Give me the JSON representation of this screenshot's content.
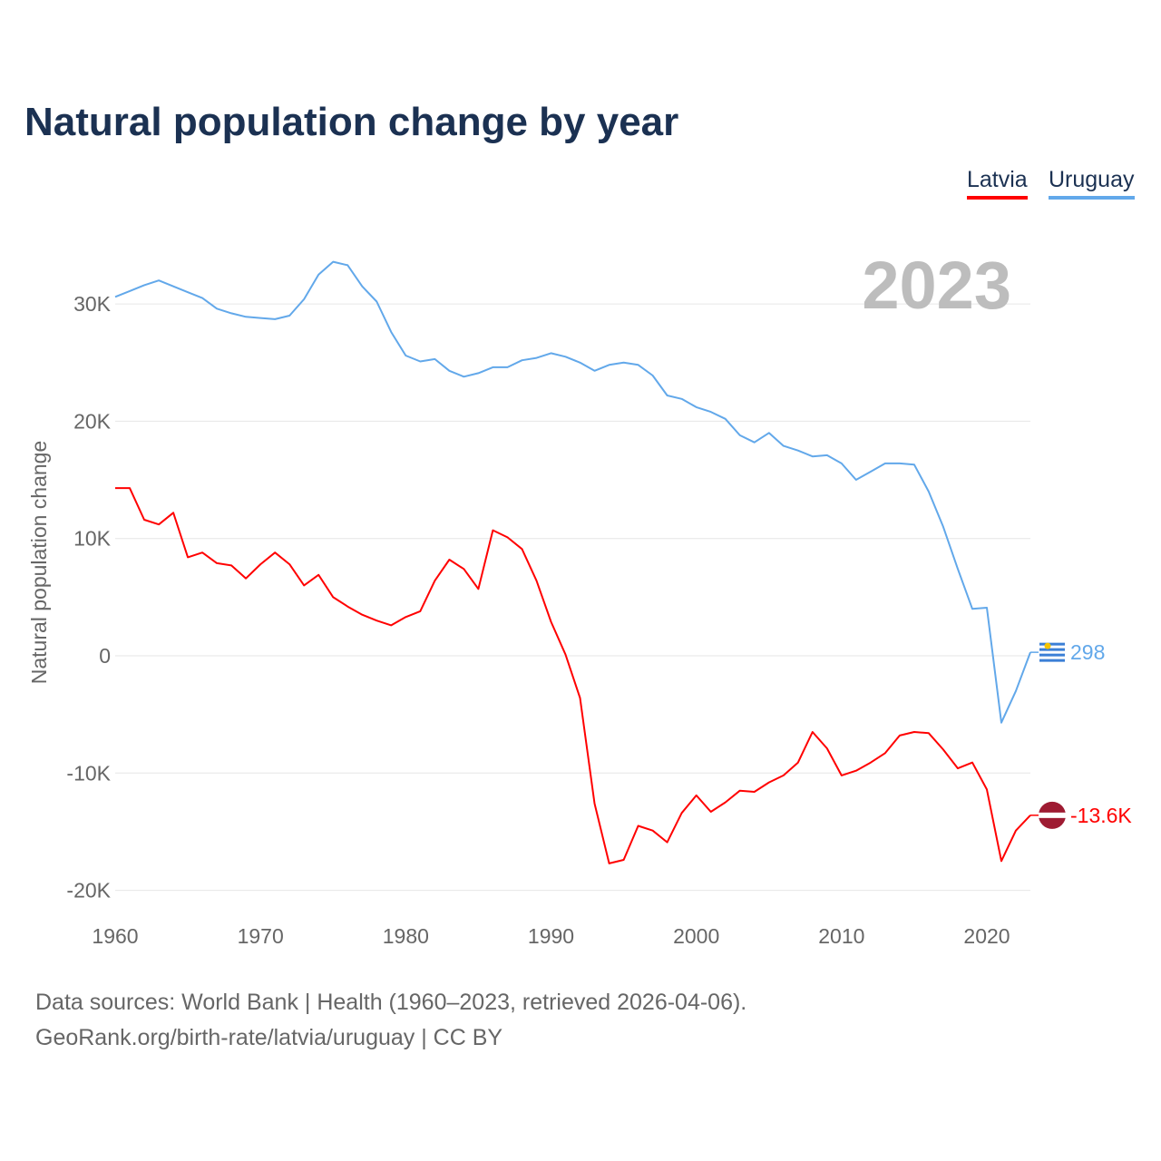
{
  "title": "Natural population change by year",
  "legend": [
    {
      "label": "Latvia",
      "color": "#ff0000"
    },
    {
      "label": "Uruguay",
      "color": "#62a8ea"
    }
  ],
  "year_watermark": "2023",
  "footer": {
    "line1": "Data sources: World Bank | Health (1960–2023, retrieved 2026-04-06).",
    "line2": "GeoRank.org/birth-rate/latvia/uruguay | CC BY"
  },
  "chart_data": {
    "type": "line",
    "title": "Natural population change by year",
    "xlabel": "",
    "ylabel": "Natural population change",
    "xlim": [
      1960,
      2023
    ],
    "ylim": [
      -22000,
      36000
    ],
    "grid": true,
    "legend_position": "top-right",
    "y_ticks": [
      {
        "v": 30000,
        "label": "30K"
      },
      {
        "v": 20000,
        "label": "20K"
      },
      {
        "v": 10000,
        "label": "10K"
      },
      {
        "v": 0,
        "label": "0"
      },
      {
        "v": -10000,
        "label": "-10K"
      },
      {
        "v": -20000,
        "label": "-20K"
      }
    ],
    "x_ticks": [
      {
        "v": 1960,
        "label": "1960"
      },
      {
        "v": 1970,
        "label": "1970"
      },
      {
        "v": 1980,
        "label": "1980"
      },
      {
        "v": 1990,
        "label": "1990"
      },
      {
        "v": 2000,
        "label": "2000"
      },
      {
        "v": 2010,
        "label": "2010"
      },
      {
        "v": 2020,
        "label": "2020"
      }
    ],
    "x_start": 1960,
    "series": [
      {
        "name": "Latvia",
        "color": "#ff0000",
        "end_label": "-13.6K",
        "values": [
          14300,
          14300,
          11600,
          11200,
          12200,
          8400,
          8800,
          7900,
          7700,
          6600,
          7800,
          8800,
          7800,
          6000,
          6900,
          5000,
          4200,
          3500,
          3000,
          2600,
          3300,
          3800,
          6400,
          8200,
          7400,
          5700,
          10700,
          10100,
          9100,
          6400,
          2900,
          100,
          -3600,
          -12600,
          -17700,
          -17400,
          -14500,
          -14900,
          -15900,
          -13400,
          -11900,
          -13300,
          -12500,
          -11500,
          -11600,
          -10800,
          -10200,
          -9100,
          -6500,
          -7900,
          -10200,
          -9800,
          -9100,
          -8300,
          -6800,
          -6500,
          -6600,
          -8000,
          -9600,
          -9100,
          -11400,
          -17500,
          -14900,
          -13600
        ]
      },
      {
        "name": "Uruguay",
        "color": "#62a8ea",
        "end_label": "298",
        "values": [
          30600,
          31100,
          31600,
          32000,
          31500,
          31000,
          30500,
          29600,
          29200,
          28900,
          28800,
          28700,
          29000,
          30400,
          32500,
          33600,
          33300,
          31500,
          30200,
          27600,
          25600,
          25100,
          25300,
          24300,
          23800,
          24100,
          24600,
          24600,
          25200,
          25400,
          25800,
          25500,
          25000,
          24300,
          24800,
          25000,
          24800,
          23900,
          22200,
          21900,
          21200,
          20800,
          20200,
          18800,
          18200,
          19000,
          17900,
          17500,
          17000,
          17100,
          16400,
          15000,
          15700,
          16400,
          16400,
          16300,
          14000,
          11000,
          7400,
          4000,
          4100,
          -5700,
          -3000,
          298
        ]
      }
    ]
  }
}
